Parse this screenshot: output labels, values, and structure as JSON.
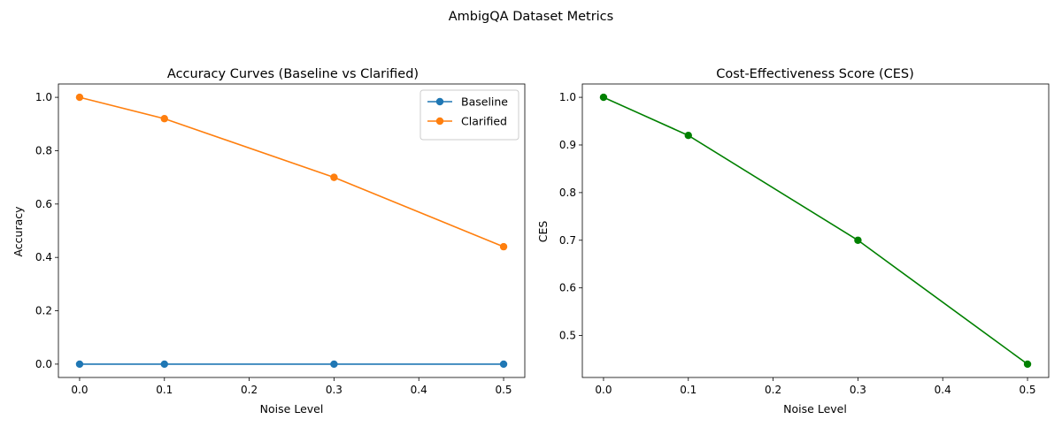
{
  "figure": {
    "suptitle": "AmbigQA Dataset Metrics"
  },
  "chart_data": [
    {
      "type": "line",
      "title": "Accuracy Curves (Baseline vs Clarified)",
      "xlabel": "Noise Level",
      "ylabel": "Accuracy",
      "x": [
        0.0,
        0.1,
        0.3,
        0.5
      ],
      "xlim": [
        -0.025,
        0.525
      ],
      "ylim": [
        -0.05,
        1.05
      ],
      "xticks": [
        "0.0",
        "0.1",
        "0.2",
        "0.3",
        "0.4",
        "0.5"
      ],
      "yticks": [
        "0.0",
        "0.2",
        "0.4",
        "0.6",
        "0.8",
        "1.0"
      ],
      "grid": false,
      "legend": "upper-right",
      "series": [
        {
          "name": "Baseline",
          "values": [
            0.0,
            0.0,
            0.0,
            0.0
          ],
          "color": "#1f77b4",
          "marker": "circle"
        },
        {
          "name": "Clarified",
          "values": [
            1.0,
            0.92,
            0.7,
            0.44
          ],
          "color": "#ff7f0e",
          "marker": "circle"
        }
      ]
    },
    {
      "type": "line",
      "title": "Cost-Effectiveness Score (CES)",
      "xlabel": "Noise Level",
      "ylabel": "CES",
      "x": [
        0.0,
        0.1,
        0.3,
        0.5
      ],
      "xlim": [
        -0.025,
        0.525
      ],
      "ylim": [
        0.412,
        1.028
      ],
      "xticks": [
        "0.0",
        "0.1",
        "0.2",
        "0.3",
        "0.4",
        "0.5"
      ],
      "yticks": [
        "0.5",
        "0.6",
        "0.7",
        "0.8",
        "0.9",
        "1.0"
      ],
      "grid": false,
      "series": [
        {
          "values": [
            1.0,
            0.92,
            0.7,
            0.44
          ],
          "color": "#008000",
          "marker": "circle"
        }
      ]
    }
  ]
}
